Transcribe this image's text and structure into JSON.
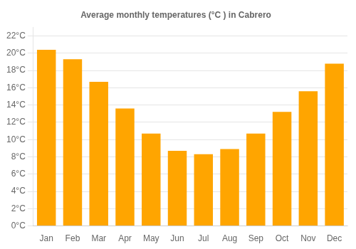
{
  "chart_data": {
    "type": "bar",
    "title": "Average monthly temperatures (°C ) in Cabrero",
    "categories": [
      "Jan",
      "Feb",
      "Mar",
      "Apr",
      "May",
      "Jun",
      "Jul",
      "Aug",
      "Sep",
      "Oct",
      "Nov",
      "Dec"
    ],
    "values": [
      20.4,
      19.3,
      16.7,
      13.6,
      10.7,
      8.7,
      8.3,
      8.9,
      10.7,
      13.2,
      15.6,
      18.8
    ],
    "color": "#FFA500",
    "ylim": [
      0,
      23
    ],
    "yticks": [
      {
        "value": 0,
        "label": "0°C"
      },
      {
        "value": 2,
        "label": "2°C"
      },
      {
        "value": 4,
        "label": "4°C"
      },
      {
        "value": 6,
        "label": "6°C"
      },
      {
        "value": 8,
        "label": "8°C"
      },
      {
        "value": 10,
        "label": "10°C"
      },
      {
        "value": 12,
        "label": "12°C"
      },
      {
        "value": 14,
        "label": "14°C"
      },
      {
        "value": 16,
        "label": "16°C"
      },
      {
        "value": 18,
        "label": "18°C"
      },
      {
        "value": 20,
        "label": "20°C"
      },
      {
        "value": 22,
        "label": "22°C"
      }
    ],
    "grid": true
  }
}
